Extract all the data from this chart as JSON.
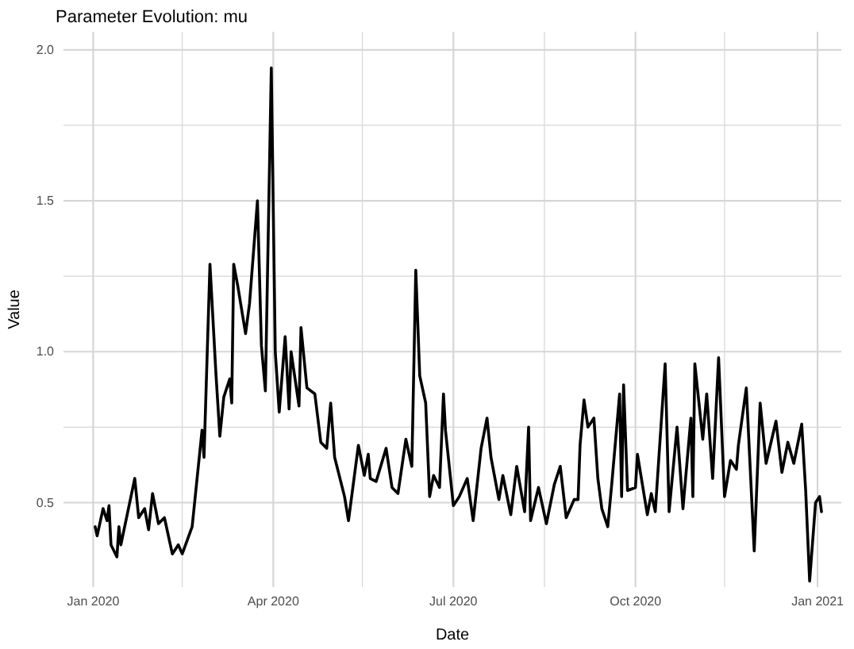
{
  "chart_data": {
    "type": "line",
    "title": "Parameter Evolution: mu",
    "xlabel": "Date",
    "ylabel": "Value",
    "x": [
      "2020-01-02",
      "2020-01-03",
      "2020-01-06",
      "2020-01-08",
      "2020-01-09",
      "2020-01-10",
      "2020-01-13",
      "2020-01-14",
      "2020-01-15",
      "2020-01-22",
      "2020-01-24",
      "2020-01-27",
      "2020-01-29",
      "2020-01-31",
      "2020-02-03",
      "2020-02-06",
      "2020-02-10",
      "2020-02-13",
      "2020-02-15",
      "2020-02-20",
      "2020-02-25",
      "2020-02-26",
      "2020-02-29",
      "2020-03-03",
      "2020-03-05",
      "2020-03-07",
      "2020-03-10",
      "2020-03-11",
      "2020-03-12",
      "2020-03-14",
      "2020-03-18",
      "2020-03-20",
      "2020-03-24",
      "2020-03-26",
      "2020-03-28",
      "2020-03-31",
      "2020-04-02",
      "2020-04-04",
      "2020-04-07",
      "2020-04-09",
      "2020-04-10",
      "2020-04-14",
      "2020-04-15",
      "2020-04-18",
      "2020-04-22",
      "2020-04-25",
      "2020-04-28",
      "2020-04-30",
      "2020-05-02",
      "2020-05-07",
      "2020-05-09",
      "2020-05-14",
      "2020-05-17",
      "2020-05-19",
      "2020-05-20",
      "2020-05-23",
      "2020-05-28",
      "2020-05-31",
      "2020-06-03",
      "2020-06-07",
      "2020-06-10",
      "2020-06-12",
      "2020-06-14",
      "2020-06-17",
      "2020-06-19",
      "2020-06-21",
      "2020-06-24",
      "2020-06-26",
      "2020-06-27",
      "2020-07-01",
      "2020-07-04",
      "2020-07-08",
      "2020-07-11",
      "2020-07-15",
      "2020-07-18",
      "2020-07-20",
      "2020-07-24",
      "2020-07-26",
      "2020-07-30",
      "2020-08-02",
      "2020-08-06",
      "2020-08-08",
      "2020-08-09",
      "2020-08-13",
      "2020-08-17",
      "2020-08-21",
      "2020-08-24",
      "2020-08-27",
      "2020-08-31",
      "2020-09-02",
      "2020-09-03",
      "2020-09-05",
      "2020-09-07",
      "2020-09-10",
      "2020-09-12",
      "2020-09-14",
      "2020-09-17",
      "2020-09-19",
      "2020-09-23",
      "2020-09-24",
      "2020-09-25",
      "2020-09-27",
      "2020-10-01",
      "2020-10-02",
      "2020-10-07",
      "2020-10-09",
      "2020-10-11",
      "2020-10-16",
      "2020-10-18",
      "2020-10-22",
      "2020-10-25",
      "2020-10-29",
      "2020-10-30",
      "2020-10-31",
      "2020-11-04",
      "2020-11-06",
      "2020-11-09",
      "2020-11-12",
      "2020-11-15",
      "2020-11-18",
      "2020-11-21",
      "2020-11-22",
      "2020-11-26",
      "2020-11-30",
      "2020-12-03",
      "2020-12-06",
      "2020-12-11",
      "2020-12-14",
      "2020-12-17",
      "2020-12-20",
      "2020-12-24",
      "2020-12-26",
      "2020-12-28",
      "2020-12-31",
      "2021-01-02",
      "2021-01-03"
    ],
    "series": [
      {
        "color": "#000000",
        "values": [
          0.42,
          0.39,
          0.48,
          0.44,
          0.49,
          0.36,
          0.32,
          0.42,
          0.36,
          0.58,
          0.45,
          0.48,
          0.41,
          0.53,
          0.43,
          0.45,
          0.33,
          0.36,
          0.33,
          0.42,
          0.74,
          0.65,
          1.29,
          0.93,
          0.72,
          0.85,
          0.91,
          0.83,
          1.29,
          1.22,
          1.06,
          1.16,
          1.5,
          1.02,
          0.87,
          1.94,
          1.0,
          0.8,
          1.05,
          0.81,
          1.0,
          0.82,
          1.08,
          0.88,
          0.86,
          0.7,
          0.68,
          0.83,
          0.65,
          0.52,
          0.44,
          0.69,
          0.59,
          0.66,
          0.58,
          0.57,
          0.68,
          0.55,
          0.53,
          0.71,
          0.62,
          1.27,
          0.92,
          0.83,
          0.52,
          0.59,
          0.55,
          0.86,
          0.74,
          0.49,
          0.52,
          0.58,
          0.44,
          0.68,
          0.78,
          0.65,
          0.51,
          0.59,
          0.46,
          0.62,
          0.47,
          0.75,
          0.44,
          0.55,
          0.43,
          0.56,
          0.62,
          0.45,
          0.51,
          0.51,
          0.69,
          0.84,
          0.75,
          0.78,
          0.58,
          0.48,
          0.42,
          0.56,
          0.86,
          0.52,
          0.89,
          0.54,
          0.55,
          0.66,
          0.46,
          0.53,
          0.47,
          0.96,
          0.47,
          0.75,
          0.48,
          0.78,
          0.52,
          0.96,
          0.71,
          0.86,
          0.58,
          0.98,
          0.52,
          0.64,
          0.61,
          0.69,
          0.88,
          0.34,
          0.83,
          0.63,
          0.77,
          0.6,
          0.7,
          0.63,
          0.76,
          0.54,
          0.24,
          0.5,
          0.52,
          0.47
        ]
      }
    ],
    "xlim": [
      "2019-12-17",
      "2021-01-13"
    ],
    "xticks": [
      {
        "value": "2020-01-01",
        "label": "Jan 2020"
      },
      {
        "value": "2020-02-15",
        "label": null
      },
      {
        "value": "2020-04-01",
        "label": "Apr 2020"
      },
      {
        "value": "2020-05-16",
        "label": null
      },
      {
        "value": "2020-07-01",
        "label": "Jul 2020"
      },
      {
        "value": "2020-08-16",
        "label": null
      },
      {
        "value": "2020-10-01",
        "label": "Oct 2020"
      },
      {
        "value": "2020-11-15",
        "label": null
      },
      {
        "value": "2021-01-01",
        "label": "Jan 2021"
      }
    ],
    "ylim": [
      0.22,
      2.06
    ],
    "yticks": [
      {
        "value": 0.5,
        "label": "0.5"
      },
      {
        "value": 0.75,
        "label": null
      },
      {
        "value": 1.0,
        "label": "1.0"
      },
      {
        "value": 1.25,
        "label": null
      },
      {
        "value": 1.5,
        "label": "1.5"
      },
      {
        "value": 1.75,
        "label": null
      },
      {
        "value": 2.0,
        "label": "2.0"
      }
    ],
    "grid": true,
    "line_style": "solid"
  }
}
